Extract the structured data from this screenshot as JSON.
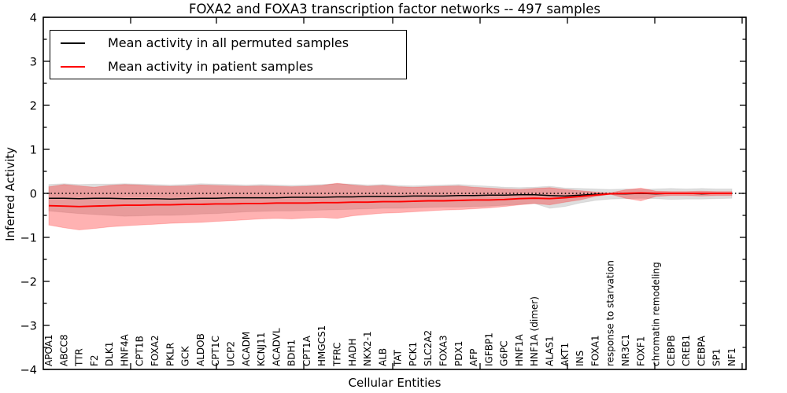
{
  "figure": {
    "title": "FOXA2 and FOXA3 transcription factor networks -- 497 samples",
    "xlabel": "Cellular Entities",
    "ylabel": "Inferred Activity"
  },
  "legend": {
    "entries": [
      {
        "label": "Mean activity in all permuted samples",
        "color": "#000000"
      },
      {
        "label": "Mean activity in patient samples",
        "color": "#ff0000"
      }
    ]
  },
  "chart_data": {
    "type": "line",
    "title": "FOXA2 and FOXA3 transcription factor networks -- 497 samples",
    "xlabel": "Cellular Entities",
    "ylabel": "Inferred Activity",
    "ylim": [
      -4,
      4
    ],
    "yticks": {
      "values": [
        -4,
        -3,
        -2,
        -1,
        0,
        1,
        2,
        3,
        4
      ],
      "labels": [
        "−4",
        "−3",
        "−2",
        "−1",
        "0",
        "1",
        "2",
        "3",
        "4"
      ],
      "minor_step": 0.5
    },
    "grid": false,
    "legend_position": "upper left",
    "reference_line": {
      "y": 0,
      "style": "dotted",
      "color": "#000000"
    },
    "categories": [
      "APOA1",
      "ABCC8",
      "TTR",
      "F2",
      "DLK1",
      "HNF4A",
      "CPT1B",
      "FOXA2",
      "PKLR",
      "GCK",
      "ALDOB",
      "CPT1C",
      "UCP2",
      "ACADM",
      "KCNJ11",
      "ACADVL",
      "BDH1",
      "CPT1A",
      "HMGCS1",
      "TFRC",
      "HADH",
      "NKX2-1",
      "ALB",
      "TAT",
      "PCK1",
      "SLC2A2",
      "FOXA3",
      "PDX1",
      "AFP",
      "IGFBP1",
      "G6PC",
      "HNF1A",
      "HNF1A (dimer)",
      "ALAS1",
      "AKT1",
      "INS",
      "FOXA1",
      "response to starvation",
      "NR3C1",
      "FOXF1",
      "chromatin remodeling",
      "CEBPB",
      "CREB1",
      "CEBPA",
      "SP1",
      "NF1"
    ],
    "series": [
      {
        "name": "Mean activity in all permuted samples",
        "color": "#000000",
        "style": "solid",
        "values": [
          -0.11,
          -0.11,
          -0.12,
          -0.11,
          -0.11,
          -0.12,
          -0.12,
          -0.12,
          -0.13,
          -0.12,
          -0.11,
          -0.11,
          -0.1,
          -0.1,
          -0.1,
          -0.1,
          -0.09,
          -0.09,
          -0.09,
          -0.08,
          -0.08,
          -0.07,
          -0.07,
          -0.07,
          -0.06,
          -0.06,
          -0.06,
          -0.05,
          -0.05,
          -0.04,
          -0.04,
          -0.03,
          -0.03,
          -0.05,
          -0.06,
          -0.04,
          -0.02,
          -0.01,
          -0.01,
          0.0,
          -0.01,
          0.0,
          0.0,
          -0.01,
          0.0,
          0.0
        ]
      },
      {
        "name": "Mean activity in patient samples",
        "color": "#ff0000",
        "style": "solid",
        "values": [
          -0.28,
          -0.29,
          -0.3,
          -0.29,
          -0.28,
          -0.27,
          -0.27,
          -0.26,
          -0.26,
          -0.25,
          -0.25,
          -0.24,
          -0.24,
          -0.23,
          -0.23,
          -0.22,
          -0.22,
          -0.22,
          -0.21,
          -0.21,
          -0.2,
          -0.2,
          -0.19,
          -0.19,
          -0.18,
          -0.17,
          -0.17,
          -0.16,
          -0.15,
          -0.15,
          -0.14,
          -0.12,
          -0.11,
          -0.12,
          -0.1,
          -0.07,
          -0.04,
          -0.01,
          0.0,
          0.01,
          0.0,
          0.0,
          0.0,
          0.0,
          0.0,
          0.0
        ]
      }
    ],
    "bands": [
      {
        "name": "permuted-std-band",
        "color": "#888888",
        "opacity": 0.28,
        "upper": [
          0.2,
          0.22,
          0.2,
          0.21,
          0.21,
          0.22,
          0.21,
          0.2,
          0.19,
          0.2,
          0.22,
          0.21,
          0.2,
          0.19,
          0.2,
          0.19,
          0.18,
          0.19,
          0.2,
          0.22,
          0.21,
          0.19,
          0.2,
          0.18,
          0.17,
          0.18,
          0.19,
          0.2,
          0.18,
          0.16,
          0.14,
          0.13,
          0.14,
          0.16,
          0.12,
          0.11,
          0.1,
          0.09,
          0.1,
          0.09,
          0.1,
          0.11,
          0.1,
          0.11,
          0.1,
          0.1
        ],
        "lower": [
          -0.4,
          -0.43,
          -0.46,
          -0.48,
          -0.5,
          -0.52,
          -0.51,
          -0.5,
          -0.5,
          -0.49,
          -0.47,
          -0.46,
          -0.44,
          -0.42,
          -0.41,
          -0.4,
          -0.4,
          -0.39,
          -0.38,
          -0.37,
          -0.36,
          -0.35,
          -0.34,
          -0.34,
          -0.33,
          -0.32,
          -0.31,
          -0.31,
          -0.3,
          -0.29,
          -0.27,
          -0.25,
          -0.23,
          -0.34,
          -0.3,
          -0.22,
          -0.16,
          -0.13,
          -0.12,
          -0.11,
          -0.12,
          -0.14,
          -0.13,
          -0.13,
          -0.12,
          -0.11
        ]
      },
      {
        "name": "patient-std-band",
        "color": "#ff0000",
        "opacity": 0.3,
        "upper": [
          0.15,
          0.2,
          0.17,
          0.14,
          0.18,
          0.2,
          0.19,
          0.17,
          0.16,
          0.17,
          0.19,
          0.18,
          0.17,
          0.16,
          0.17,
          0.16,
          0.15,
          0.16,
          0.18,
          0.23,
          0.19,
          0.16,
          0.18,
          0.15,
          0.14,
          0.15,
          0.16,
          0.17,
          0.14,
          0.12,
          0.1,
          0.09,
          0.11,
          0.13,
          0.09,
          0.06,
          0.03,
          0.01,
          0.08,
          0.12,
          0.05,
          0.04,
          0.04,
          0.05,
          0.04,
          0.04
        ],
        "lower": [
          -0.72,
          -0.78,
          -0.83,
          -0.8,
          -0.76,
          -0.74,
          -0.72,
          -0.7,
          -0.68,
          -0.67,
          -0.66,
          -0.64,
          -0.62,
          -0.6,
          -0.58,
          -0.57,
          -0.58,
          -0.56,
          -0.55,
          -0.57,
          -0.51,
          -0.48,
          -0.45,
          -0.44,
          -0.42,
          -0.4,
          -0.38,
          -0.37,
          -0.35,
          -0.33,
          -0.3,
          -0.26,
          -0.23,
          -0.26,
          -0.2,
          -0.15,
          -0.07,
          -0.02,
          -0.11,
          -0.17,
          -0.07,
          -0.05,
          -0.05,
          -0.06,
          -0.05,
          -0.05
        ]
      }
    ]
  }
}
